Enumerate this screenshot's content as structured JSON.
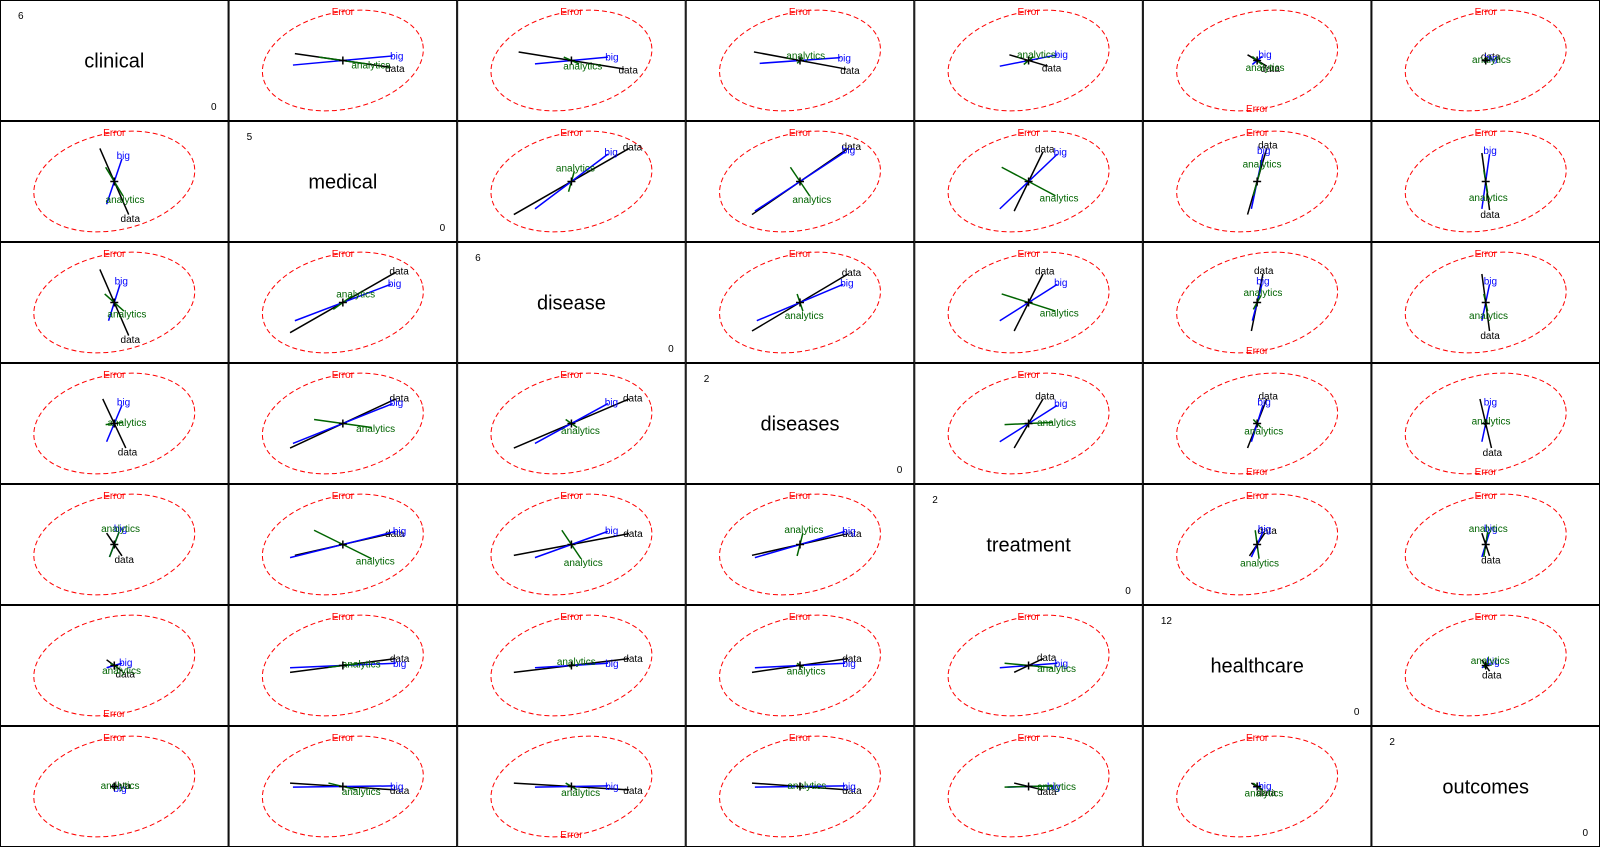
{
  "chart_data": {
    "type": "scatter",
    "title": "",
    "variables": [
      {
        "name": "clinical",
        "max": "6",
        "min": "0"
      },
      {
        "name": "medical",
        "max": "5",
        "min": "0"
      },
      {
        "name": "disease",
        "max": "6",
        "min": "0"
      },
      {
        "name": "diseases",
        "max": "2",
        "min": "0"
      },
      {
        "name": "treatment",
        "max": "2",
        "min": "0"
      },
      {
        "name": "healthcare",
        "max": "12",
        "min": "0"
      },
      {
        "name": "outcomes",
        "max": "2",
        "min": "0"
      }
    ],
    "error_label": "Error",
    "error_color": "#ff0000",
    "colors": {
      "data": "#000000",
      "big": "#0000ff",
      "analytics": "#006400",
      "centroid": "#000000",
      "frame": "#000000"
    },
    "responses": [
      "data",
      "big",
      "analytics"
    ],
    "ellipse": {
      "rx": 0.85,
      "ry": 0.85
    },
    "panels": [
      {
        "row": 0,
        "col": 1,
        "err_pos": "top",
        "vectors": {
          "data": [
            0.5,
            -0.12
          ],
          "big": [
            0.52,
            0.08
          ],
          "analytics": [
            0.25,
            -0.06
          ]
        }
      },
      {
        "row": 0,
        "col": 2,
        "err_pos": "top",
        "vectors": {
          "data": [
            0.55,
            -0.15
          ],
          "big": [
            0.38,
            0.06
          ],
          "analytics": [
            0.08,
            -0.06
          ]
        }
      },
      {
        "row": 0,
        "col": 3,
        "err_pos": "top",
        "vectors": {
          "data": [
            0.48,
            -0.15
          ],
          "big": [
            0.42,
            0.05
          ],
          "analytics": [
            0.03,
            0.05
          ]
        }
      },
      {
        "row": 0,
        "col": 4,
        "err_pos": "top",
        "vectors": {
          "data": [
            0.2,
            -0.1
          ],
          "big": [
            0.3,
            0.1
          ],
          "analytics": [
            0.05,
            0.07
          ]
        }
      },
      {
        "row": 0,
        "col": 5,
        "err_pos": "bottom",
        "vectors": {
          "data": [
            0.1,
            -0.1
          ],
          "big": [
            0.05,
            0.07
          ],
          "analytics": [
            0.05,
            -0.07
          ]
        }
      },
      {
        "row": 0,
        "col": 6,
        "err_pos": "top",
        "vectors": {
          "data": [
            0.02,
            0.03
          ],
          "big": [
            0.02,
            0.02
          ],
          "analytics": [
            0.02,
            0.01
          ]
        }
      },
      {
        "row": 1,
        "col": 0,
        "err_pos": "top",
        "vectors": {
          "data": [
            0.15,
            -0.58
          ],
          "big": [
            0.08,
            0.4
          ],
          "analytics": [
            0.09,
            -0.25
          ]
        }
      },
      {
        "row": 1,
        "col": 2,
        "err_pos": "top",
        "vectors": {
          "data": [
            0.6,
            0.58
          ],
          "big": [
            0.38,
            0.48
          ],
          "analytics": [
            0.03,
            0.18
          ]
        }
      },
      {
        "row": 1,
        "col": 3,
        "err_pos": "top",
        "vectors": {
          "data": [
            0.5,
            0.58
          ],
          "big": [
            0.47,
            0.52
          ],
          "analytics": [
            0.1,
            -0.25
          ]
        }
      },
      {
        "row": 1,
        "col": 4,
        "err_pos": "top",
        "vectors": {
          "data": [
            0.15,
            0.52
          ],
          "big": [
            0.3,
            0.48
          ],
          "analytics": [
            0.28,
            -0.25
          ]
        }
      },
      {
        "row": 1,
        "col": 5,
        "err_pos": "top",
        "vectors": {
          "data": [
            0.1,
            0.58
          ],
          "big": [
            0.06,
            0.48
          ],
          "analytics": [
            0.04,
            0.25
          ]
        }
      },
      {
        "row": 1,
        "col": 6,
        "err_pos": "top",
        "vectors": {
          "data": [
            0.04,
            -0.5
          ],
          "big": [
            0.04,
            0.48
          ],
          "analytics": [
            0.02,
            -0.2
          ]
        }
      },
      {
        "row": 2,
        "col": 0,
        "err_pos": "top",
        "vectors": {
          "data": [
            0.15,
            -0.58
          ],
          "big": [
            0.06,
            0.32
          ],
          "analytics": [
            0.1,
            -0.15
          ]
        }
      },
      {
        "row": 2,
        "col": 1,
        "err_pos": "top",
        "vectors": {
          "data": [
            0.55,
            0.53
          ],
          "big": [
            0.5,
            0.32
          ],
          "analytics": [
            0.1,
            0.12
          ]
        }
      },
      {
        "row": 2,
        "col": 3,
        "err_pos": "top",
        "vectors": {
          "data": [
            0.5,
            0.5
          ],
          "big": [
            0.45,
            0.32
          ],
          "analytics": [
            0.03,
            -0.15
          ]
        }
      },
      {
        "row": 2,
        "col": 4,
        "err_pos": "top",
        "vectors": {
          "data": [
            0.15,
            0.5
          ],
          "big": [
            0.3,
            0.32
          ],
          "analytics": [
            0.28,
            -0.15
          ]
        }
      },
      {
        "row": 2,
        "col": 5,
        "err_pos": "bottom",
        "vectors": {
          "data": [
            0.06,
            0.5
          ],
          "big": [
            0.05,
            0.32
          ],
          "analytics": [
            0.04,
            0.12
          ]
        }
      },
      {
        "row": 2,
        "col": 6,
        "err_pos": "top",
        "vectors": {
          "data": [
            0.04,
            -0.5
          ],
          "big": [
            0.04,
            0.32
          ],
          "analytics": [
            0.02,
            -0.15
          ]
        }
      },
      {
        "row": 3,
        "col": 0,
        "err_pos": "top",
        "vectors": {
          "data": [
            0.12,
            -0.43
          ],
          "big": [
            0.08,
            0.32
          ],
          "analytics": [
            0.09,
            0.02
          ]
        }
      },
      {
        "row": 3,
        "col": 1,
        "err_pos": "top",
        "vectors": {
          "data": [
            0.55,
            0.43
          ],
          "big": [
            0.52,
            0.35
          ],
          "analytics": [
            0.3,
            -0.07
          ]
        }
      },
      {
        "row": 3,
        "col": 2,
        "err_pos": "top",
        "vectors": {
          "data": [
            0.6,
            0.43
          ],
          "big": [
            0.38,
            0.35
          ],
          "analytics": [
            0.06,
            -0.07
          ]
        }
      },
      {
        "row": 3,
        "col": 4,
        "err_pos": "top",
        "vectors": {
          "data": [
            0.15,
            0.43
          ],
          "big": [
            0.3,
            0.32
          ],
          "analytics": [
            0.25,
            0.02
          ]
        }
      },
      {
        "row": 3,
        "col": 5,
        "err_pos": "bottom",
        "vectors": {
          "data": [
            0.1,
            0.43
          ],
          "big": [
            0.06,
            0.32
          ],
          "analytics": [
            0.04,
            -0.07
          ]
        }
      },
      {
        "row": 3,
        "col": 6,
        "err_pos": "bottom",
        "vectors": {
          "data": [
            0.06,
            -0.43
          ],
          "big": [
            0.04,
            0.32
          ],
          "analytics": [
            0.02,
            0.02
          ]
        }
      },
      {
        "row": 4,
        "col": 0,
        "err_pos": "top",
        "vectors": {
          "data": [
            0.08,
            -0.2
          ],
          "big": [
            0.05,
            0.22
          ],
          "analytics": [
            0.05,
            0.22
          ]
        }
      },
      {
        "row": 4,
        "col": 1,
        "err_pos": "top",
        "vectors": {
          "data": [
            0.5,
            0.19
          ],
          "big": [
            0.55,
            0.23
          ],
          "analytics": [
            0.3,
            -0.25
          ]
        }
      },
      {
        "row": 4,
        "col": 2,
        "err_pos": "top",
        "vectors": {
          "data": [
            0.6,
            0.19
          ],
          "big": [
            0.38,
            0.23
          ],
          "analytics": [
            0.1,
            -0.25
          ]
        }
      },
      {
        "row": 4,
        "col": 3,
        "err_pos": "top",
        "vectors": {
          "data": [
            0.5,
            0.19
          ],
          "big": [
            0.47,
            0.23
          ],
          "analytics": [
            0.03,
            0.2
          ]
        }
      },
      {
        "row": 4,
        "col": 5,
        "err_pos": "top",
        "vectors": {
          "data": [
            0.08,
            0.2
          ],
          "big": [
            0.06,
            0.22
          ],
          "analytics": [
            0.02,
            -0.25
          ]
        }
      },
      {
        "row": 4,
        "col": 6,
        "err_pos": "top",
        "vectors": {
          "data": [
            0.04,
            -0.2
          ],
          "big": [
            0.04,
            0.22
          ],
          "analytics": [
            0.02,
            0.22
          ]
        }
      },
      {
        "row": 5,
        "col": 0,
        "err_pos": "bottom",
        "vectors": {
          "data": [
            0.08,
            -0.1
          ],
          "big": [
            0.08,
            0.04
          ],
          "analytics": [
            0.04,
            -0.04
          ]
        }
      },
      {
        "row": 5,
        "col": 1,
        "err_pos": "top",
        "vectors": {
          "data": [
            0.55,
            0.12
          ],
          "big": [
            0.55,
            0.04
          ],
          "analytics": [
            0.15,
            0.03
          ]
        }
      },
      {
        "row": 5,
        "col": 2,
        "err_pos": "top",
        "vectors": {
          "data": [
            0.6,
            0.12
          ],
          "big": [
            0.38,
            0.04
          ],
          "analytics": [
            0.02,
            0.03
          ]
        }
      },
      {
        "row": 5,
        "col": 3,
        "err_pos": "top",
        "vectors": {
          "data": [
            0.5,
            0.12
          ],
          "big": [
            0.47,
            0.04
          ],
          "analytics": [
            0.03,
            -0.04
          ]
        }
      },
      {
        "row": 5,
        "col": 4,
        "err_pos": "top",
        "vectors": {
          "data": [
            0.15,
            0.12
          ],
          "big": [
            0.3,
            0.04
          ],
          "analytics": [
            0.25,
            -0.04
          ]
        }
      },
      {
        "row": 5,
        "col": 6,
        "err_pos": "top",
        "vectors": {
          "data": [
            0.04,
            -0.1
          ],
          "big": [
            0.04,
            0.04
          ],
          "analytics": [
            0.02,
            0.04
          ]
        }
      },
      {
        "row": 6,
        "col": 0,
        "err_pos": "top",
        "vectors": {
          "data": [
            0.03,
            0.01
          ],
          "big": [
            0.02,
            -0.01
          ],
          "analytics": [
            0.02,
            0.01
          ]
        }
      },
      {
        "row": 6,
        "col": 1,
        "err_pos": "top",
        "vectors": {
          "data": [
            0.55,
            -0.06
          ],
          "big": [
            0.52,
            0.01
          ],
          "analytics": [
            0.15,
            -0.06
          ]
        }
      },
      {
        "row": 6,
        "col": 2,
        "err_pos": "bottom",
        "vectors": {
          "data": [
            0.6,
            -0.06
          ],
          "big": [
            0.38,
            0.01
          ],
          "analytics": [
            0.06,
            -0.06
          ]
        }
      },
      {
        "row": 6,
        "col": 3,
        "err_pos": "top",
        "vectors": {
          "data": [
            0.5,
            -0.06
          ],
          "big": [
            0.47,
            0.01
          ],
          "analytics": [
            0.03,
            0.01
          ]
        }
      },
      {
        "row": 6,
        "col": 4,
        "err_pos": "top",
        "vectors": {
          "data": [
            0.15,
            -0.06
          ],
          "big": [
            0.22,
            0.01
          ],
          "analytics": [
            0.25,
            0.01
          ]
        }
      },
      {
        "row": 6,
        "col": 5,
        "err_pos": "top",
        "vectors": {
          "data": [
            0.06,
            -0.06
          ],
          "big": [
            0.04,
            0.01
          ],
          "analytics": [
            0.04,
            -0.06
          ]
        }
      }
    ]
  }
}
